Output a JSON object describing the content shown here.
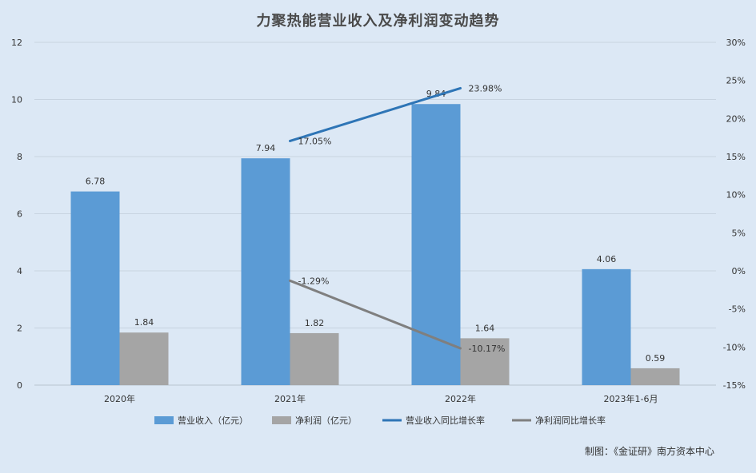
{
  "title": "力聚热能营业收入及净利润变动趋势",
  "credit": "制图：《金证研》南方资本中心",
  "colors": {
    "background": "#dce8f5",
    "revenue_bar": "#5b9bd5",
    "profit_bar": "#a5a5a5",
    "revenue_line": "#2e75b6",
    "profit_line": "#7f7f7f",
    "grid": "#c7d3e0",
    "text": "#333333"
  },
  "chart_data": {
    "type": "bar",
    "title": "力聚热能营业收入及净利润变动趋势",
    "categories": [
      "2020年",
      "2021年",
      "2022年",
      "2023年1-6月"
    ],
    "ylim": [
      0,
      12
    ],
    "y_ticks": [
      0,
      2,
      4,
      6,
      8,
      10,
      12
    ],
    "y2lim": [
      -15,
      30
    ],
    "y2_ticks": [
      "-15%",
      "-10%",
      "-5%",
      "0%",
      "5%",
      "10%",
      "15%",
      "20%",
      "25%",
      "30%"
    ],
    "y2_tick_values": [
      -15,
      -10,
      -5,
      0,
      5,
      10,
      15,
      20,
      25,
      30
    ],
    "grid": true,
    "legend_position": "bottom",
    "series": [
      {
        "name": "营业收入（亿元）",
        "kind": "bar",
        "axis": "left",
        "values": [
          6.78,
          7.94,
          9.84,
          4.06
        ],
        "labels": [
          "6.78",
          "7.94",
          "9.84",
          "4.06"
        ]
      },
      {
        "name": "净利润（亿元）",
        "kind": "bar",
        "axis": "left",
        "values": [
          1.84,
          1.82,
          1.64,
          0.59
        ],
        "labels": [
          "1.84",
          "1.82",
          "1.64",
          "0.59"
        ]
      },
      {
        "name": "营业收入同比增长率",
        "kind": "line",
        "axis": "right",
        "values": [
          null,
          17.05,
          23.98,
          null
        ],
        "labels": [
          null,
          "17.05%",
          "23.98%",
          null
        ]
      },
      {
        "name": "净利润同比增长率",
        "kind": "line",
        "axis": "right",
        "values": [
          null,
          -1.29,
          -10.17,
          null
        ],
        "labels": [
          null,
          "-1.29%",
          "-10.17%",
          null
        ]
      }
    ]
  }
}
